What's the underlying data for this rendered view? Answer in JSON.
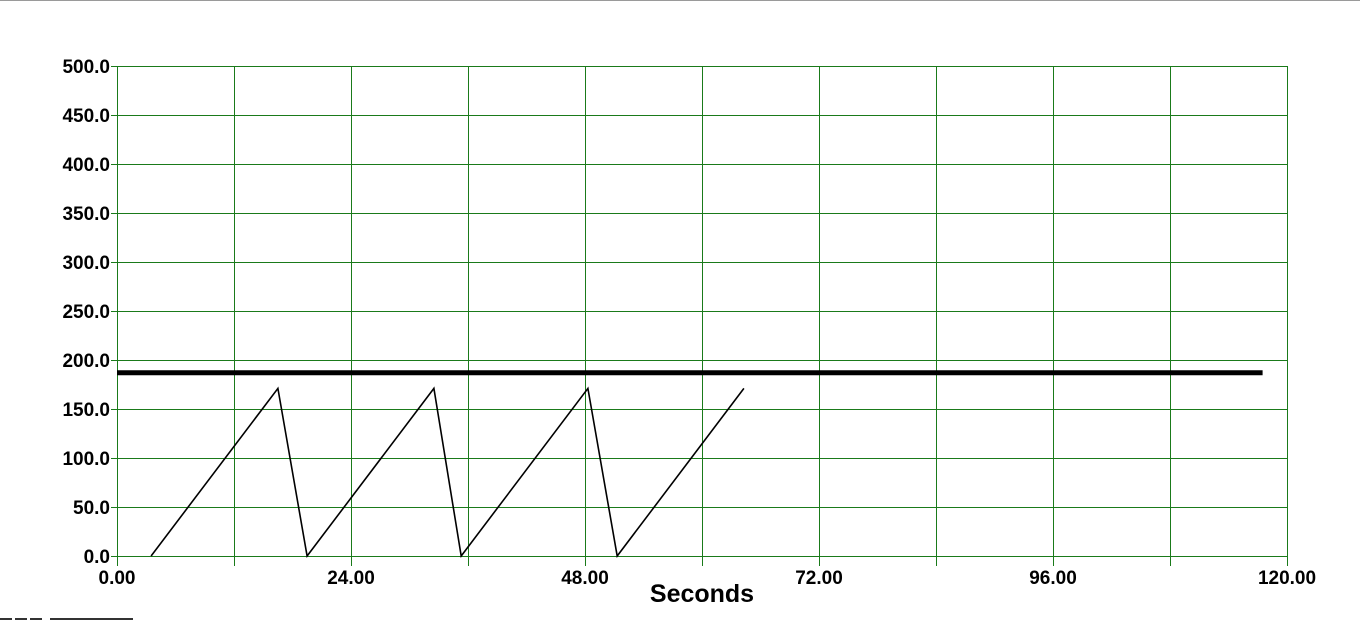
{
  "chart_data": {
    "type": "line",
    "xlabel": "Seconds",
    "ylabel": "",
    "xlim": [
      0,
      120
    ],
    "ylim": [
      0,
      500
    ],
    "grid": true,
    "x_ticks": [
      0,
      24,
      48,
      72,
      96,
      120
    ],
    "x_tick_labels": [
      "0.00",
      "24.00",
      "48.00",
      "72.00",
      "96.00",
      "120.00"
    ],
    "x_minor_gridlines": [
      12,
      36,
      60,
      84,
      108
    ],
    "y_ticks": [
      0,
      50,
      100,
      150,
      200,
      250,
      300,
      350,
      400,
      450,
      500
    ],
    "y_tick_labels": [
      "0.0",
      "50.0",
      "100.0",
      "150.0",
      "200.0",
      "250.0",
      "300.0",
      "350.0",
      "400.0",
      "450.0",
      "500.0"
    ],
    "grid_color": "#1a7a1a",
    "series": [
      {
        "color": "#000000",
        "line_style": "thin",
        "x": [
          3.5,
          16.5,
          19.5,
          32.5,
          35.3,
          48.3,
          51.3,
          64.3
        ],
        "y": [
          0,
          171,
          0,
          171,
          0,
          171,
          0,
          171
        ]
      },
      {
        "color": "#000000",
        "line_style": "thick",
        "x": [
          0,
          117.5
        ],
        "y": [
          187,
          187
        ]
      }
    ]
  }
}
